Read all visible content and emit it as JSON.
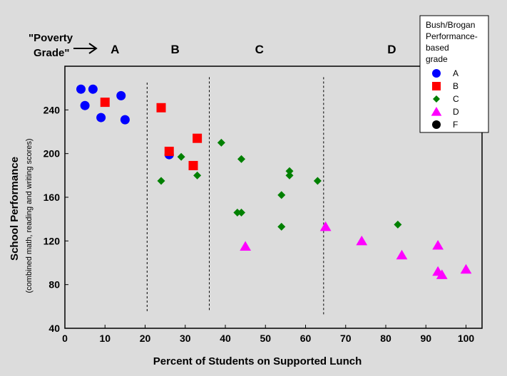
{
  "chart_data": {
    "type": "scatter",
    "xlabel": "Percent of Students on Supported Lunch",
    "ylabel": "School Performance",
    "ylabel_sub": "(combined math, reading and writing scores)",
    "xlim": [
      0,
      104
    ],
    "ylim": [
      40,
      280
    ],
    "x_ticks": [
      0,
      10,
      20,
      30,
      40,
      50,
      60,
      70,
      80,
      90,
      100
    ],
    "y_ticks": [
      40,
      80,
      120,
      160,
      200,
      240
    ],
    "grid": false,
    "poverty_label_line1": "\"Poverty",
    "poverty_label_line2": "Grade\"",
    "poverty_grades": [
      {
        "label": "A",
        "x": 12.5
      },
      {
        "label": "B",
        "x": 27.5
      },
      {
        "label": "C",
        "x": 48.5
      },
      {
        "label": "D",
        "x": 81.5
      }
    ],
    "dividers": [
      {
        "x": 20.5,
        "y_from": 55,
        "y_to": 265
      },
      {
        "x": 36,
        "y_from": 55,
        "y_to": 270
      },
      {
        "x": 64.5,
        "y_from": 52,
        "y_to": 270
      }
    ],
    "legend": {
      "position": "top-right",
      "title_lines": [
        "Bush/Brogan",
        "Performance-",
        "based",
        "grade"
      ]
    },
    "series": [
      {
        "name": "A",
        "marker": "circle",
        "color": "#0000ff",
        "points": [
          [
            4,
            259
          ],
          [
            7,
            259
          ],
          [
            14,
            253
          ],
          [
            5,
            244
          ],
          [
            9,
            233
          ],
          [
            15,
            231
          ],
          [
            26,
            199
          ]
        ]
      },
      {
        "name": "B",
        "marker": "square",
        "color": "#ff0000",
        "points": [
          [
            10,
            247
          ],
          [
            24,
            242
          ],
          [
            33,
            214
          ],
          [
            26,
            202
          ],
          [
            32,
            189
          ]
        ]
      },
      {
        "name": "C",
        "marker": "diamond",
        "color": "#008000",
        "points": [
          [
            39,
            210
          ],
          [
            29,
            197
          ],
          [
            44,
            195
          ],
          [
            56,
            184
          ],
          [
            56,
            180
          ],
          [
            33,
            180
          ],
          [
            24,
            175
          ],
          [
            63,
            175
          ],
          [
            54,
            162
          ],
          [
            43,
            146
          ],
          [
            44,
            146
          ],
          [
            54,
            133
          ],
          [
            83,
            135
          ]
        ]
      },
      {
        "name": "D",
        "marker": "triangle",
        "color": "#ff00ff",
        "points": [
          [
            65,
            133
          ],
          [
            74,
            120
          ],
          [
            93,
            116
          ],
          [
            45,
            115
          ],
          [
            84,
            107
          ],
          [
            100,
            94
          ],
          [
            93,
            92
          ],
          [
            94,
            89
          ]
        ]
      },
      {
        "name": "F",
        "marker": "circle",
        "color": "#000000",
        "points": []
      }
    ]
  }
}
